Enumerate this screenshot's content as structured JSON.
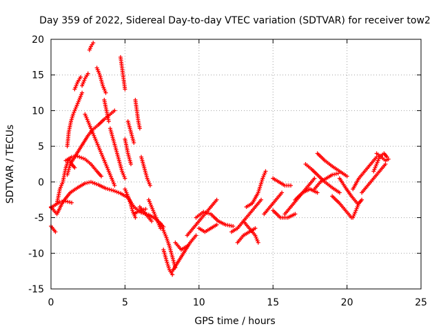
{
  "chart_data": {
    "type": "scatter",
    "title": "Day 359 of 2022, Sidereal Day-to-day VTEC variation (SDTVAR) for receiver tow2",
    "xlabel": "GPS time / hours",
    "ylabel": "SDTVAR / TECUs",
    "xlim": [
      0,
      25
    ],
    "ylim": [
      -15,
      20
    ],
    "xticks": [
      "0",
      "5",
      "10",
      "15",
      "20",
      "25"
    ],
    "yticks": [
      "-15",
      "-10",
      "-5",
      "0",
      "5",
      "10",
      "15",
      "20"
    ],
    "grid": true,
    "marker": "+",
    "color": "#ff0000",
    "series": [
      {
        "name": "SDTVAR",
        "tracks": [
          [
            [
              0.0,
              -3.5
            ],
            [
              0.4,
              -4.5
            ],
            [
              0.8,
              -2.8
            ],
            [
              1.3,
              -1.5
            ],
            [
              1.8,
              -0.8
            ],
            [
              2.3,
              -0.2
            ],
            [
              2.7,
              0.0
            ],
            [
              3.2,
              -0.4
            ],
            [
              3.7,
              -0.9
            ],
            [
              4.2,
              -1.2
            ],
            [
              4.7,
              -1.6
            ],
            [
              5.2,
              -2.2
            ],
            [
              5.6,
              -3.5
            ],
            [
              6.1,
              -4.3
            ],
            [
              6.6,
              -4.6
            ],
            [
              7.1,
              -5.2
            ],
            [
              7.6,
              -6.3
            ]
          ],
          [
            [
              0.0,
              -6.2
            ],
            [
              0.3,
              -7.0
            ]
          ],
          [
            [
              0.0,
              -3.6
            ],
            [
              0.6,
              -2.8
            ],
            [
              1.0,
              -2.7
            ],
            [
              1.4,
              -2.9
            ]
          ],
          [
            [
              0.4,
              -3.0
            ],
            [
              0.6,
              -1.0
            ],
            [
              0.8,
              0.0
            ],
            [
              1.0,
              2.0
            ],
            [
              1.2,
              3.2
            ],
            [
              1.4,
              2.5
            ],
            [
              1.6,
              2.0
            ]
          ],
          [
            [
              1.1,
              1.0
            ],
            [
              1.3,
              2.5
            ],
            [
              1.6,
              3.5
            ],
            [
              1.9,
              4.5
            ],
            [
              2.2,
              5.5
            ],
            [
              2.5,
              6.5
            ],
            [
              2.8,
              7.3
            ],
            [
              3.2,
              8.0
            ],
            [
              3.6,
              8.8
            ],
            [
              4.0,
              9.5
            ],
            [
              4.3,
              10.0
            ]
          ],
          [
            [
              1.0,
              3.0
            ],
            [
              1.4,
              3.5
            ],
            [
              1.8,
              3.6
            ],
            [
              2.3,
              3.2
            ],
            [
              2.7,
              2.5
            ],
            [
              3.1,
              1.5
            ],
            [
              3.4,
              0.8
            ]
          ],
          [
            [
              1.1,
              5.0
            ],
            [
              1.2,
              7.0
            ],
            [
              1.35,
              8.5
            ],
            [
              1.5,
              9.5
            ],
            [
              1.7,
              10.5
            ],
            [
              1.9,
              11.5
            ],
            [
              2.1,
              12.5
            ]
          ],
          [
            [
              1.6,
              13.0
            ],
            [
              1.8,
              14.0
            ],
            [
              2.0,
              14.7
            ]
          ],
          [
            [
              2.1,
              13.5
            ],
            [
              2.3,
              14.5
            ],
            [
              2.5,
              15.2
            ]
          ],
          [
            [
              2.6,
              18.5
            ],
            [
              2.7,
              19.0
            ],
            [
              2.85,
              19.5
            ]
          ],
          [
            [
              2.3,
              9.5
            ],
            [
              2.5,
              8.5
            ],
            [
              2.7,
              7.5
            ],
            [
              2.9,
              6.5
            ],
            [
              3.1,
              5.5
            ],
            [
              3.3,
              4.5
            ],
            [
              3.5,
              3.5
            ],
            [
              3.7,
              2.5
            ],
            [
              3.9,
              1.5
            ],
            [
              4.1,
              0.5
            ],
            [
              4.3,
              -0.5
            ]
          ],
          [
            [
              3.1,
              16.0
            ],
            [
              3.3,
              15.0
            ],
            [
              3.5,
              13.5
            ],
            [
              3.7,
              12.5
            ]
          ],
          [
            [
              3.6,
              11.5
            ],
            [
              3.75,
              10.0
            ],
            [
              3.9,
              8.5
            ]
          ],
          [
            [
              4.0,
              7.5
            ],
            [
              4.2,
              6.0
            ],
            [
              4.4,
              4.5
            ],
            [
              4.6,
              3.0
            ],
            [
              4.8,
              1.5
            ],
            [
              5.0,
              0.5
            ]
          ],
          [
            [
              4.7,
              17.5
            ],
            [
              4.8,
              16.0
            ],
            [
              4.9,
              14.5
            ],
            [
              5.0,
              13.0
            ]
          ],
          [
            [
              5.0,
              6.0
            ],
            [
              5.2,
              4.0
            ],
            [
              5.4,
              2.5
            ]
          ],
          [
            [
              5.2,
              8.5
            ],
            [
              5.4,
              7.0
            ],
            [
              5.6,
              5.5
            ]
          ],
          [
            [
              5.7,
              11.5
            ],
            [
              5.8,
              10.0
            ],
            [
              5.9,
              8.5
            ],
            [
              6.0,
              7.5
            ]
          ],
          [
            [
              6.1,
              3.5
            ],
            [
              6.3,
              2.0
            ],
            [
              6.5,
              0.5
            ],
            [
              6.7,
              -0.5
            ]
          ],
          [
            [
              5.0,
              -1.0
            ],
            [
              5.3,
              -2.5
            ],
            [
              5.5,
              -4.0
            ],
            [
              5.7,
              -5.0
            ]
          ],
          [
            [
              5.6,
              -4.5
            ],
            [
              6.0,
              -4.0
            ],
            [
              6.4,
              -3.8
            ]
          ],
          [
            [
              6.0,
              -3.5
            ],
            [
              6.4,
              -4.5
            ],
            [
              6.8,
              -5.5
            ]
          ],
          [
            [
              6.6,
              -2.5
            ],
            [
              6.8,
              -3.5
            ],
            [
              7.0,
              -4.5
            ],
            [
              7.2,
              -5.5
            ],
            [
              7.4,
              -6.5
            ]
          ],
          [
            [
              7.4,
              -5.8
            ],
            [
              7.6,
              -6.8
            ],
            [
              7.8,
              -7.8
            ],
            [
              8.0,
              -9.0
            ],
            [
              8.2,
              -10.5
            ],
            [
              8.4,
              -12.0
            ]
          ],
          [
            [
              7.6,
              -9.5
            ],
            [
              7.8,
              -11.0
            ],
            [
              8.0,
              -12.3
            ],
            [
              8.2,
              -13.0
            ]
          ],
          [
            [
              8.2,
              -12.5
            ],
            [
              8.5,
              -11.5
            ],
            [
              8.8,
              -10.5
            ],
            [
              9.1,
              -9.5
            ],
            [
              9.4,
              -8.5
            ],
            [
              9.8,
              -7.5
            ]
          ],
          [
            [
              8.4,
              -8.5
            ],
            [
              8.8,
              -9.5
            ],
            [
              9.2,
              -9.0
            ]
          ],
          [
            [
              9.2,
              -7.5
            ],
            [
              9.6,
              -6.5
            ],
            [
              10.0,
              -5.5
            ],
            [
              10.4,
              -4.5
            ],
            [
              10.8,
              -3.5
            ],
            [
              11.2,
              -2.5
            ]
          ],
          [
            [
              10.0,
              -6.5
            ],
            [
              10.4,
              -7.0
            ],
            [
              10.8,
              -6.5
            ],
            [
              11.2,
              -6.0
            ]
          ],
          [
            [
              9.8,
              -5.0
            ],
            [
              10.3,
              -4.2
            ],
            [
              10.8,
              -4.5
            ],
            [
              11.3,
              -5.5
            ],
            [
              11.8,
              -6.0
            ],
            [
              12.3,
              -6.2
            ]
          ],
          [
            [
              12.2,
              -7.0
            ],
            [
              12.6,
              -6.5
            ],
            [
              13.0,
              -5.5
            ],
            [
              13.4,
              -4.5
            ],
            [
              13.8,
              -3.5
            ],
            [
              14.2,
              -2.5
            ]
          ],
          [
            [
              12.6,
              -8.5
            ],
            [
              13.0,
              -7.5
            ],
            [
              13.4,
              -7.0
            ],
            [
              13.8,
              -6.5
            ]
          ],
          [
            [
              13.0,
              -5.5
            ],
            [
              13.4,
              -6.5
            ],
            [
              13.8,
              -7.5
            ],
            [
              14.0,
              -8.5
            ]
          ],
          [
            [
              13.2,
              -3.5
            ],
            [
              13.6,
              -3.0
            ],
            [
              14.0,
              -1.5
            ],
            [
              14.3,
              0.5
            ],
            [
              14.5,
              1.5
            ]
          ],
          [
            [
              14.4,
              -4.5
            ],
            [
              14.8,
              -3.5
            ],
            [
              15.2,
              -2.5
            ],
            [
              15.6,
              -1.5
            ]
          ],
          [
            [
              15.0,
              0.5
            ],
            [
              15.4,
              0.0
            ],
            [
              15.8,
              -0.5
            ],
            [
              16.2,
              -0.5
            ]
          ],
          [
            [
              15.0,
              -4.0
            ],
            [
              15.5,
              -5.0
            ],
            [
              16.0,
              -5.0
            ],
            [
              16.5,
              -4.5
            ]
          ],
          [
            [
              15.8,
              -4.5
            ],
            [
              16.2,
              -3.5
            ],
            [
              16.6,
              -2.5
            ],
            [
              17.0,
              -1.5
            ],
            [
              17.4,
              -0.5
            ],
            [
              17.8,
              0.5
            ]
          ],
          [
            [
              16.5,
              -2.5
            ],
            [
              17.0,
              -1.5
            ],
            [
              17.5,
              -1.0
            ],
            [
              18.0,
              -1.5
            ]
          ],
          [
            [
              17.2,
              2.5
            ],
            [
              17.6,
              1.8
            ],
            [
              18.0,
              1.0
            ],
            [
              18.5,
              0.0
            ],
            [
              19.0,
              -0.8
            ],
            [
              19.5,
              -1.5
            ]
          ],
          [
            [
              17.8,
              -1.0
            ],
            [
              18.2,
              0.0
            ],
            [
              18.6,
              0.5
            ],
            [
              19.0,
              1.0
            ],
            [
              19.4,
              1.2
            ]
          ],
          [
            [
              18.0,
              4.0
            ],
            [
              18.5,
              3.0
            ],
            [
              19.0,
              2.2
            ],
            [
              19.5,
              1.5
            ],
            [
              20.0,
              0.8
            ]
          ],
          [
            [
              19.0,
              -2.0
            ],
            [
              19.5,
              -3.0
            ],
            [
              19.9,
              -4.0
            ],
            [
              20.3,
              -5.0
            ]
          ],
          [
            [
              19.5,
              0.5
            ],
            [
              19.9,
              -0.8
            ],
            [
              20.3,
              -2.0
            ],
            [
              20.7,
              -3.0
            ]
          ],
          [
            [
              20.4,
              -5.0
            ],
            [
              20.6,
              -4.0
            ],
            [
              20.8,
              -3.0
            ],
            [
              21.0,
              -2.5
            ]
          ],
          [
            [
              20.4,
              -1.0
            ],
            [
              20.8,
              0.5
            ],
            [
              21.2,
              1.5
            ],
            [
              21.6,
              2.5
            ],
            [
              22.0,
              3.5
            ]
          ],
          [
            [
              21.0,
              -1.5
            ],
            [
              21.4,
              -0.5
            ],
            [
              21.8,
              0.5
            ],
            [
              22.2,
              1.5
            ],
            [
              22.6,
              2.5
            ]
          ],
          [
            [
              21.8,
              1.5
            ],
            [
              22.0,
              2.5
            ],
            [
              22.2,
              3.5
            ],
            [
              22.5,
              4.0
            ],
            [
              22.7,
              3.5
            ]
          ],
          [
            [
              22.0,
              4.0
            ],
            [
              22.3,
              3.5
            ],
            [
              22.6,
              3.0
            ],
            [
              22.8,
              3.2
            ]
          ]
        ]
      }
    ]
  }
}
